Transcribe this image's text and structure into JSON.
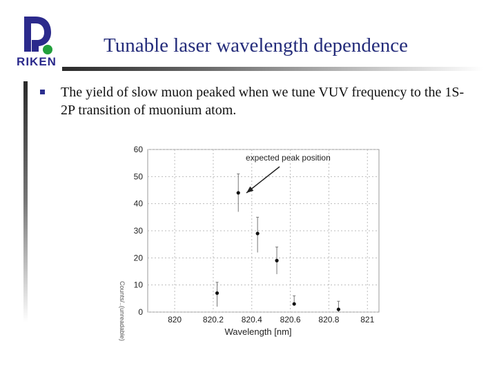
{
  "slide": {
    "title": "Tunable laser wavelength dependence",
    "bullet": "The yield of slow muon peaked when we tune VUV frequency to the 1S-2P transition of muonium atom."
  },
  "logo": {
    "text": "RIKEN",
    "primary_color": "#2b2a8c",
    "accent_color": "#22a03c"
  },
  "colors": {
    "title": "#232b7a",
    "bullet": "#2b2f8f"
  },
  "chart_data": {
    "type": "scatter",
    "xlabel": "Wavelength [nm]",
    "ylabel": "Counts/..(unreadable)",
    "xlim": [
      819.86,
      821.06
    ],
    "ylim": [
      0,
      60
    ],
    "x_ticks": [
      820,
      820.2,
      820.4,
      820.6,
      820.8,
      821
    ],
    "x_tick_labels": [
      "820",
      "820.2",
      "820.4",
      "820.6",
      "820.8",
      "821"
    ],
    "y_ticks": [
      0,
      10,
      20,
      30,
      40,
      50,
      60
    ],
    "y_tick_labels": [
      "0",
      "10",
      "20",
      "30",
      "40",
      "50",
      "60"
    ],
    "grid": true,
    "annotation": {
      "text": "expected peak position",
      "x": 820.42,
      "y": 43
    },
    "points": [
      {
        "x": 820.22,
        "y": 7,
        "err_low": 2,
        "err_high": 11
      },
      {
        "x": 820.33,
        "y": 44,
        "err_low": 37,
        "err_high": 51
      },
      {
        "x": 820.43,
        "y": 29,
        "err_low": 22,
        "err_high": 35
      },
      {
        "x": 820.53,
        "y": 19,
        "err_low": 14,
        "err_high": 24
      },
      {
        "x": 820.62,
        "y": 3,
        "err_low": 3,
        "err_high": 6
      },
      {
        "x": 820.85,
        "y": 1,
        "err_low": 0,
        "err_high": 4
      }
    ]
  }
}
